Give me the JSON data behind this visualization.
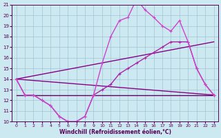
{
  "xlabel": "Windchill (Refroidissement éolien,°C)",
  "background_color": "#cce8f0",
  "xlim": [
    -0.5,
    23.5
  ],
  "ylim": [
    10,
    21
  ],
  "yticks": [
    10,
    11,
    12,
    13,
    14,
    15,
    16,
    17,
    18,
    19,
    20,
    21
  ],
  "xticks": [
    0,
    1,
    2,
    3,
    4,
    5,
    6,
    7,
    8,
    9,
    10,
    11,
    12,
    13,
    14,
    15,
    16,
    17,
    18,
    19,
    20,
    21,
    22,
    23
  ],
  "series": [
    {
      "x": [
        0,
        1,
        2,
        3,
        4,
        5,
        6,
        7,
        8,
        9,
        10,
        11,
        12,
        13,
        14,
        15,
        16,
        17,
        18,
        19,
        20,
        21,
        22,
        23
      ],
      "y": [
        12.5,
        12.5,
        12.5,
        12.5,
        12.5,
        12.5,
        12.5,
        12.5,
        12.5,
        12.5,
        12.5,
        12.5,
        12.5,
        12.5,
        12.5,
        12.5,
        12.5,
        12.5,
        12.5,
        12.5,
        12.5,
        12.5,
        12.5,
        12.5
      ],
      "color": "#660066",
      "linewidth": 1.0,
      "marker": null
    },
    {
      "x": [
        0,
        23
      ],
      "y": [
        14.0,
        17.5
      ],
      "color": "#880088",
      "linewidth": 1.0,
      "marker": null
    },
    {
      "x": [
        0,
        23
      ],
      "y": [
        14.0,
        12.5
      ],
      "color": "#880088",
      "linewidth": 1.0,
      "marker": null
    },
    {
      "x": [
        0,
        1,
        2,
        3,
        4,
        5,
        6,
        7,
        8,
        9,
        10,
        11,
        12,
        13,
        14,
        15,
        16,
        17,
        18,
        19,
        20,
        21,
        22,
        23
      ],
      "y": [
        14.0,
        12.5,
        12.5,
        12.0,
        11.5,
        10.5,
        10.0,
        10.0,
        10.5,
        12.5,
        13.0,
        13.5,
        14.5,
        15.0,
        15.5,
        16.0,
        16.5,
        17.0,
        17.5,
        17.5,
        17.5,
        15.0,
        13.5,
        12.5
      ],
      "color": "#aa22aa",
      "linewidth": 1.0,
      "marker": "+"
    },
    {
      "x": [
        0,
        1,
        2,
        3,
        4,
        5,
        6,
        7,
        8,
        9,
        10,
        11,
        12,
        13,
        14,
        15,
        16,
        17,
        18,
        19,
        20,
        21,
        22,
        23
      ],
      "y": [
        14.0,
        12.5,
        12.5,
        12.0,
        11.5,
        10.5,
        10.0,
        10.0,
        10.5,
        12.5,
        15.5,
        18.0,
        19.5,
        19.8,
        21.5,
        20.5,
        19.8,
        19.0,
        18.5,
        19.5,
        17.5,
        15.0,
        13.5,
        12.5
      ],
      "color": "#cc44cc",
      "linewidth": 1.0,
      "marker": "+"
    }
  ]
}
